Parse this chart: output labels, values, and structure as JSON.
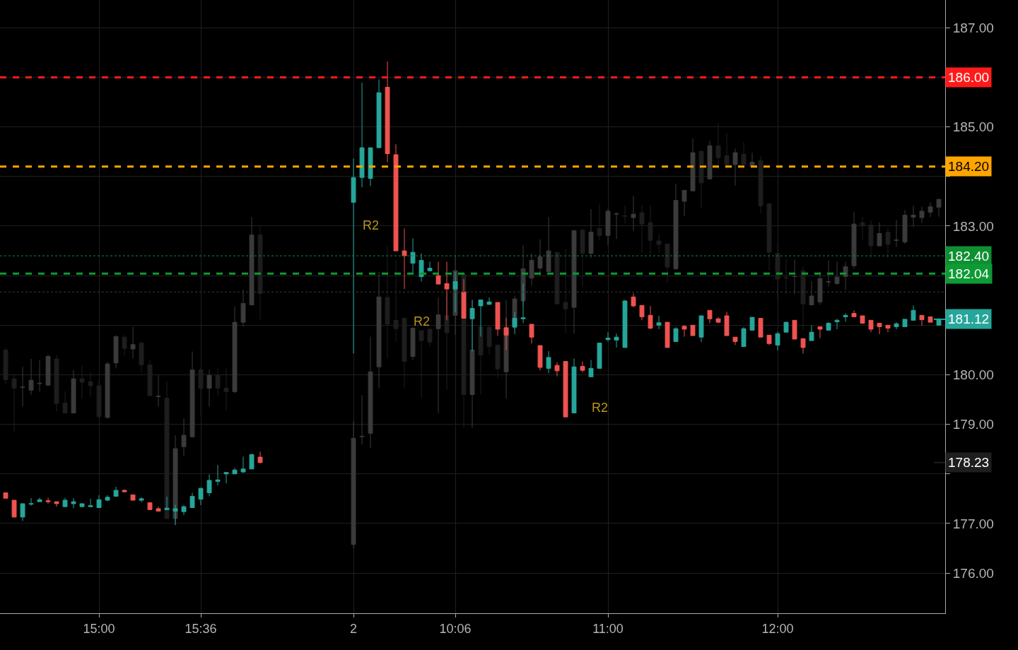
{
  "chart_data": {
    "type": "candlestick",
    "categories": [
      null,
      null,
      null,
      null,
      null,
      null,
      null,
      null,
      null,
      null,
      null,
      "15:00",
      null,
      null,
      null,
      null,
      null,
      null,
      null,
      null,
      null,
      null,
      null,
      "15:36",
      null,
      null,
      null,
      null,
      null,
      null,
      null,
      null,
      null,
      null,
      null,
      null,
      null,
      null,
      null,
      null,
      null,
      "2",
      null,
      null,
      null,
      null,
      null,
      null,
      null,
      null,
      null,
      null,
      null,
      "10:06",
      null,
      null,
      null,
      null,
      null,
      null,
      null,
      null,
      null,
      null,
      null,
      null,
      null,
      null,
      null,
      null,
      null,
      "11:00",
      null,
      null,
      null,
      null,
      null,
      null,
      null,
      null,
      null,
      null,
      null,
      null,
      null,
      null,
      null,
      null,
      null,
      null,
      null,
      "12:00",
      null,
      null,
      null,
      null,
      null,
      null,
      null,
      null,
      null,
      null,
      null,
      null,
      null,
      null,
      null,
      null,
      null,
      null,
      null
    ],
    "ylim": [
      175.19,
      187.56
    ],
    "yticks": [
      {
        "value": 176,
        "label": "176.00"
      },
      {
        "value": 177,
        "label": "177.00"
      },
      {
        "value": 178,
        "label": null
      },
      {
        "value": 179,
        "label": "179.00"
      },
      {
        "value": 180,
        "label": "180.00"
      },
      {
        "value": 181,
        "label": null
      },
      {
        "value": 182,
        "label": null
      },
      {
        "value": 183,
        "label": "183.00"
      },
      {
        "value": 184,
        "label": null
      },
      {
        "value": 185,
        "label": "185.00"
      },
      {
        "value": 186,
        "label": null
      },
      {
        "value": 187,
        "label": "187.00"
      }
    ],
    "grid": true,
    "series": [
      {
        "colors": [
          "#1e1e1e",
          "#1e1e1e",
          "#3b3b3b",
          "#3b3b3b",
          "#3b3b3b",
          "#3b3b3b",
          "#1e1e1e",
          "#1e1e1e",
          "#3b3b3b",
          "#1e1e1e",
          "#1e1e1e",
          "#1e1e1e",
          "#3b3b3b",
          "#3b3b3b",
          "#1e1e1e",
          "#3b3b3b",
          "#1e1e1e",
          "#1e1e1e",
          "#3b3b3b",
          "#1e1e1e",
          "#3b3b3b",
          "#3b3b3b",
          "#3b3b3b",
          "#1e1e1e",
          "#3b3b3b",
          "#1e1e1e",
          "#1e1e1e",
          "#3b3b3b",
          "#3b3b3b",
          "#3b3b3b",
          "#1e1e1e",
          null,
          null,
          null,
          null,
          null,
          null,
          null,
          null,
          null,
          null,
          "#3b3b3b",
          "#3b3b3b",
          "#3b3b3b",
          "#3b3b3b",
          "#1e1e1e",
          "#1e1e1e",
          "#1e1e1e",
          "#3b3b3b",
          "#1e1e1e",
          "#1e1e1e",
          "#3b3b3b",
          "#1e1e1e",
          "#3b3b3b",
          "#1e1e1e",
          "#3b3b3b",
          "#1e1e1e",
          "#1e1e1e",
          "#1e1e1e",
          "#3b3b3b",
          "#3b3b3b",
          "#3b3b3b",
          "#3b3b3b",
          "#3b3b3b",
          "#3b3b3b",
          "#1e1e1e",
          "#1e1e1e",
          "#3b3b3b",
          "#1e1e1e",
          "#3b3b3b",
          "#1e1e1e",
          "#3b3b3b",
          "#3b3b3b",
          "#1e1e1e",
          "#3b3b3b",
          "#1e1e1e",
          "#1e1e1e",
          "#1e1e1e",
          "#1e1e1e",
          "#3b3b3b",
          "#3b3b3b",
          "#3b3b3b",
          "#1e1e1e",
          "#3b3b3b",
          "#1e1e1e",
          "#1e1e1e",
          "#3b3b3b",
          "#1e1e1e",
          "#3b3b3b",
          "#1e1e1e",
          "#1e1e1e",
          "#1e1e1e",
          "#1e1e1e",
          "#3b3b3b",
          "#1e1e1e",
          "#3b3b3b",
          "#3b3b3b",
          "#3b3b3b",
          "#3b3b3b",
          "#3b3b3b",
          "#3b3b3b",
          "#1e1e1e",
          "#1e1e1e",
          "#3b3b3b",
          "#1e1e1e",
          "#3b3b3b",
          "#3b3b3b",
          "#3b3b3b",
          "#3b3b3b",
          "#3b3b3b",
          "#3b3b3b"
        ],
        "ohlc": [
          [
            180.5,
            180.55,
            179.82,
            179.9
          ],
          [
            179.92,
            180.02,
            178.85,
            179.73
          ],
          [
            179.75,
            180.16,
            179.36,
            179.75
          ],
          [
            179.69,
            180.32,
            179.6,
            179.89
          ],
          [
            179.82,
            180.29,
            179.66,
            179.83
          ],
          [
            179.79,
            180.41,
            179.79,
            180.37
          ],
          [
            180.32,
            180.4,
            179.25,
            179.42
          ],
          [
            179.43,
            179.67,
            179.22,
            179.23
          ],
          [
            179.23,
            180.1,
            179.22,
            179.92
          ],
          [
            179.92,
            180.19,
            179.52,
            179.85
          ],
          [
            179.86,
            180.06,
            179.56,
            179.78
          ],
          [
            179.78,
            179.88,
            179.11,
            179.16
          ],
          [
            179.14,
            180.26,
            179.11,
            180.22
          ],
          [
            180.24,
            180.8,
            180.13,
            180.77
          ],
          [
            180.76,
            180.8,
            180.39,
            180.53
          ],
          [
            180.52,
            180.97,
            180.33,
            180.61
          ],
          [
            180.64,
            180.67,
            180.03,
            180.2
          ],
          [
            180.2,
            180.29,
            179.58,
            179.58
          ],
          [
            179.56,
            179.99,
            179.36,
            179.57
          ],
          [
            179.53,
            179.87,
            177.1,
            177.1
          ],
          [
            177.1,
            178.78,
            176.97,
            178.51
          ],
          [
            178.55,
            179.12,
            178.37,
            178.78
          ],
          [
            178.75,
            180.47,
            178.73,
            180.1
          ],
          [
            180.1,
            180.13,
            179.15,
            179.73
          ],
          [
            179.73,
            180.1,
            179.36,
            179.99
          ],
          [
            179.99,
            180.13,
            179.58,
            179.73
          ],
          [
            179.73,
            180.13,
            179.28,
            179.66
          ],
          [
            179.66,
            181.37,
            179.63,
            181.06
          ],
          [
            181.06,
            181.72,
            180.97,
            181.44
          ],
          [
            181.41,
            183.18,
            181.41,
            182.82
          ],
          [
            182.82,
            183.02,
            181.11,
            181.64
          ],
          null,
          null,
          null,
          null,
          null,
          null,
          null,
          null,
          null,
          null,
          [
            176.58,
            179.07,
            176.5,
            178.72
          ],
          [
            178.75,
            179.59,
            178.59,
            178.76
          ],
          [
            178.82,
            180.77,
            178.52,
            180.06
          ],
          [
            180.16,
            182.08,
            179.73,
            181.57
          ],
          [
            181.56,
            182.6,
            180.34,
            181.02
          ],
          [
            181.1,
            182.31,
            180.66,
            180.93
          ],
          [
            181.14,
            181.14,
            179.73,
            180.27
          ],
          [
            180.37,
            180.96,
            180.3,
            180.94
          ],
          [
            180.89,
            180.89,
            179.53,
            180.69
          ],
          [
            180.92,
            180.92,
            180.57,
            180.66
          ],
          [
            180.93,
            181.56,
            179.23,
            181.21
          ],
          [
            181.2,
            181.7,
            179.7,
            180.85
          ],
          [
            181.2,
            182.4,
            180.8,
            182.1
          ],
          [
            182.03,
            182.03,
            178.93,
            179.6
          ],
          [
            179.6,
            181.51,
            178.93,
            180.5
          ],
          [
            180.97,
            180.97,
            179.6,
            180.4
          ],
          [
            180.96,
            181.0,
            180.4,
            180.57
          ],
          [
            180.6,
            180.6,
            179.93,
            180.12
          ],
          [
            180.06,
            181.51,
            179.52,
            180.94
          ],
          [
            180.97,
            181.6,
            180.9,
            181.53
          ],
          [
            181.49,
            182.61,
            181.4,
            182.14
          ],
          [
            181.95,
            182.45,
            181.8,
            182.31
          ],
          [
            182.15,
            182.73,
            182.0,
            182.38
          ],
          [
            182.08,
            183.18,
            182.08,
            182.5
          ],
          [
            182.47,
            182.47,
            181.43,
            181.43
          ],
          [
            181.46,
            182.54,
            180.83,
            181.33
          ],
          [
            181.36,
            182.91,
            180.83,
            182.91
          ],
          [
            182.92,
            182.95,
            181.77,
            182.45
          ],
          [
            182.45,
            183.34,
            182.35,
            182.88
          ],
          [
            182.95,
            183.45,
            182.71,
            182.81
          ],
          [
            182.81,
            183.35,
            182.61,
            183.3
          ],
          [
            183.24,
            183.28,
            182.74,
            183.25
          ],
          [
            183.21,
            183.42,
            183.05,
            183.2
          ],
          [
            183.17,
            183.61,
            182.9,
            183.24
          ],
          [
            183.27,
            183.42,
            182.47,
            183.04
          ],
          [
            183.07,
            183.42,
            182.41,
            182.71
          ],
          [
            182.7,
            182.85,
            182.47,
            182.63
          ],
          [
            182.64,
            182.64,
            181.86,
            182.17
          ],
          [
            182.14,
            183.85,
            182.11,
            183.52
          ],
          [
            183.5,
            183.72,
            183.2,
            183.72
          ],
          [
            183.71,
            184.77,
            183.71,
            184.48
          ],
          [
            184.51,
            184.51,
            183.36,
            183.87
          ],
          [
            183.95,
            184.72,
            183.95,
            184.62
          ],
          [
            184.62,
            185.08,
            184.14,
            184.38
          ],
          [
            184.42,
            184.88,
            184.14,
            184.24
          ],
          [
            184.24,
            184.56,
            183.82,
            184.48
          ],
          [
            184.45,
            184.7,
            184.14,
            184.24
          ],
          [
            184.21,
            184.48,
            184.18,
            184.29
          ],
          [
            184.32,
            184.41,
            183.25,
            183.41
          ],
          [
            183.45,
            183.45,
            182.1,
            182.47
          ],
          [
            182.45,
            182.61,
            181.49,
            181.93
          ],
          [
            181.96,
            182.34,
            181.63,
            181.95
          ],
          [
            181.98,
            182.32,
            181.63,
            181.98
          ],
          [
            182.1,
            182.18,
            180.89,
            181.43
          ],
          [
            181.41,
            181.89,
            181.41,
            181.59
          ],
          [
            181.47,
            182.08,
            181.41,
            181.94
          ],
          [
            181.87,
            182.31,
            181.78,
            181.88
          ],
          [
            181.84,
            182.28,
            181.81,
            181.97
          ],
          [
            181.98,
            182.28,
            181.71,
            182.18
          ],
          [
            182.2,
            183.28,
            182.14,
            183.04
          ],
          [
            183.07,
            183.18,
            182.73,
            183.0
          ],
          [
            183.02,
            183.12,
            182.35,
            182.6
          ],
          [
            182.6,
            183.07,
            182.6,
            182.85
          ],
          [
            182.88,
            182.97,
            182.35,
            182.63
          ],
          [
            182.71,
            183.12,
            182.58,
            182.72
          ],
          [
            182.68,
            183.32,
            182.64,
            183.22
          ],
          [
            183.18,
            183.41,
            182.98,
            183.22
          ],
          [
            183.17,
            183.39,
            183.06,
            183.3
          ],
          [
            183.28,
            183.48,
            183.18,
            183.39
          ],
          [
            183.38,
            183.54,
            183.19,
            183.54
          ]
        ]
      },
      {
        "colors": [
          "#ef5350",
          "#ef5350",
          "#26a69a",
          "#26a69a",
          "#26a69a",
          "#ef5350",
          "#ef5350",
          "#26a69a",
          "#26a69a",
          "#26a69a",
          "#26a69a",
          "#26a69a",
          "#26a69a",
          "#26a69a",
          "#ef5350",
          "#ef5350",
          "#26a69a",
          "#ef5350",
          "#ef5350",
          "#26a69a",
          "#26a69a",
          "#26a69a",
          "#26a69a",
          "#26a69a",
          "#26a69a",
          "#26a69a",
          "#26a69a",
          "#26a69a",
          "#26a69a",
          "#26a69a",
          "#ef5350",
          null,
          null,
          null,
          null,
          null,
          null,
          null,
          null,
          null,
          null,
          "#26a69a",
          "#26a69a",
          "#26a69a",
          "#26a69a",
          "#ef5350",
          "#ef5350",
          "#ef5350",
          "#26a69a",
          "#26a69a",
          "#26a69a",
          "#ef5350",
          "#ef5350",
          "#26a69a",
          "#ef5350",
          "#26a69a",
          "#26a69a",
          "#26a69a",
          "#ef5350",
          "#ef5350",
          "#26a69a",
          "#26a69a",
          "#ef5350",
          "#ef5350",
          "#26a69a",
          "#ef5350",
          "#ef5350",
          "#26a69a",
          "#ef5350",
          "#26a69a",
          "#26a69a",
          "#26a69a",
          "#26a69a",
          "#26a69a",
          "#ef5350",
          "#ef5350",
          "#ef5350",
          "#26a69a",
          "#ef5350",
          "#26a69a",
          "#ef5350",
          "#ef5350",
          "#26a69a",
          "#ef5350",
          "#ef5350",
          "#ef5350",
          "#ef5350",
          "#26a69a",
          "#26a69a",
          "#ef5350",
          "#ef5350",
          "#26a69a",
          "#26a69a",
          "#ef5350",
          "#ef5350",
          "#26a69a",
          "#ef5350",
          "#26a69a",
          "#26a69a",
          "#26a69a",
          "#ef5350",
          "#ef5350",
          "#ef5350",
          "#ef5350",
          "#ef5350",
          "#26a69a",
          "#26a69a",
          "#26a69a",
          "#ef5350",
          "#ef5350",
          "#26a69a"
        ],
        "ohlc": [
          [
            177.62,
            177.62,
            177.51,
            177.51
          ],
          [
            177.47,
            177.47,
            177.13,
            177.13
          ],
          [
            177.13,
            177.4,
            177.05,
            177.4
          ],
          [
            177.39,
            177.51,
            177.36,
            177.4
          ],
          [
            177.44,
            177.52,
            177.44,
            177.48
          ],
          [
            177.46,
            177.52,
            177.4,
            177.44
          ],
          [
            177.44,
            177.44,
            177.34,
            177.4
          ],
          [
            177.34,
            177.52,
            177.34,
            177.47
          ],
          [
            177.4,
            177.51,
            177.31,
            177.44
          ],
          [
            177.34,
            177.4,
            177.34,
            177.4
          ],
          [
            177.34,
            177.5,
            177.34,
            177.36
          ],
          [
            177.32,
            177.57,
            177.32,
            177.48
          ],
          [
            177.47,
            177.57,
            177.45,
            177.53
          ],
          [
            177.55,
            177.74,
            177.55,
            177.67
          ],
          [
            177.67,
            177.69,
            177.63,
            177.64
          ],
          [
            177.58,
            177.58,
            177.47,
            177.47
          ],
          [
            177.47,
            177.53,
            177.43,
            177.5
          ],
          [
            177.42,
            177.42,
            177.28,
            177.28
          ],
          [
            177.3,
            177.34,
            177.25,
            177.25
          ],
          [
            177.28,
            177.54,
            177.28,
            177.31
          ],
          [
            177.25,
            177.38,
            176.97,
            177.3
          ],
          [
            177.24,
            177.37,
            177.17,
            177.34
          ],
          [
            177.32,
            177.62,
            177.32,
            177.55
          ],
          [
            177.49,
            177.72,
            177.37,
            177.71
          ],
          [
            177.62,
            177.99,
            177.55,
            177.87
          ],
          [
            177.85,
            178.18,
            177.77,
            177.88
          ],
          [
            178.0,
            178.04,
            177.81,
            178.03
          ],
          [
            178.0,
            178.12,
            178.0,
            178.08
          ],
          [
            178.04,
            178.35,
            178.02,
            178.1
          ],
          [
            178.1,
            178.41,
            178.1,
            178.39
          ],
          [
            178.34,
            178.45,
            178.21,
            178.23
          ],
          null,
          null,
          null,
          null,
          null,
          null,
          null,
          null,
          null,
          null,
          [
            183.48,
            184.36,
            180.43,
            183.98
          ],
          [
            183.98,
            185.89,
            183.78,
            184.58
          ],
          [
            183.96,
            184.58,
            183.81,
            184.58
          ],
          [
            184.58,
            185.96,
            184.58,
            185.69
          ],
          [
            185.8,
            186.32,
            184.29,
            184.46
          ],
          [
            184.44,
            184.65,
            182.5,
            182.5
          ],
          [
            182.5,
            182.95,
            181.73,
            182.4
          ],
          [
            182.25,
            182.75,
            182.03,
            182.47
          ],
          [
            181.98,
            182.45,
            181.88,
            182.31
          ],
          [
            182.1,
            182.28,
            182.08,
            182.15
          ],
          [
            182.0,
            182.28,
            181.83,
            181.83
          ],
          [
            181.84,
            182.28,
            181.1,
            181.73
          ],
          [
            181.73,
            182.08,
            181.26,
            181.88
          ],
          [
            181.67,
            181.93,
            181.14,
            181.14
          ],
          [
            181.13,
            181.51,
            180.47,
            181.34
          ],
          [
            181.39,
            181.51,
            180.77,
            181.51
          ],
          [
            181.42,
            181.56,
            181.41,
            181.47
          ],
          [
            181.46,
            181.46,
            180.79,
            180.92
          ],
          [
            180.95,
            181.15,
            180.5,
            180.8
          ],
          [
            180.96,
            181.27,
            180.82,
            181.14
          ],
          [
            181.13,
            181.84,
            181.04,
            181.15
          ],
          [
            181.02,
            181.02,
            180.63,
            180.76
          ],
          [
            180.59,
            180.59,
            180.09,
            180.15
          ],
          [
            180.13,
            180.48,
            180.03,
            180.35
          ],
          [
            180.19,
            180.25,
            179.97,
            180.08
          ],
          [
            180.27,
            180.27,
            179.15,
            179.15
          ],
          [
            179.23,
            180.33,
            179.23,
            180.16
          ],
          [
            180.17,
            180.27,
            180.05,
            180.09
          ],
          [
            179.96,
            180.3,
            179.96,
            180.13
          ],
          [
            180.13,
            180.64,
            180.13,
            180.64
          ],
          [
            180.71,
            180.86,
            180.67,
            180.74
          ],
          [
            180.7,
            180.83,
            180.55,
            180.76
          ],
          [
            180.55,
            181.51,
            180.55,
            181.49
          ],
          [
            181.57,
            181.64,
            181.36,
            181.39
          ],
          [
            181.4,
            181.4,
            181.1,
            181.17
          ],
          [
            181.2,
            181.39,
            180.92,
            180.94
          ],
          [
            181.0,
            181.19,
            180.92,
            181.05
          ],
          [
            181.06,
            181.06,
            180.55,
            180.55
          ],
          [
            180.67,
            180.96,
            180.67,
            180.93
          ],
          [
            180.98,
            181.0,
            180.77,
            180.92
          ],
          [
            181.0,
            181.0,
            180.79,
            180.79
          ],
          [
            180.76,
            181.19,
            180.66,
            181.19
          ],
          [
            181.3,
            181.3,
            181.04,
            181.13
          ],
          [
            181.13,
            181.16,
            181.04,
            181.06
          ],
          [
            181.19,
            181.27,
            180.79,
            180.79
          ],
          [
            180.76,
            180.76,
            180.6,
            180.67
          ],
          [
            180.57,
            180.96,
            180.57,
            180.93
          ],
          [
            180.9,
            181.16,
            180.9,
            181.16
          ],
          [
            181.14,
            181.14,
            180.76,
            180.76
          ],
          [
            180.8,
            180.8,
            180.6,
            180.63
          ],
          [
            180.6,
            180.87,
            180.49,
            180.83
          ],
          [
            180.86,
            181.06,
            180.86,
            181.06
          ],
          [
            181.1,
            181.1,
            180.72,
            180.72
          ],
          [
            180.73,
            180.73,
            180.43,
            180.55
          ],
          [
            180.69,
            181.0,
            180.69,
            180.86
          ],
          [
            180.97,
            180.97,
            180.74,
            180.92
          ],
          [
            180.9,
            181.06,
            180.9,
            181.04
          ],
          [
            181.07,
            181.13,
            180.92,
            181.1
          ],
          [
            181.17,
            181.24,
            181.07,
            181.2
          ],
          [
            181.24,
            181.3,
            181.17,
            181.17
          ],
          [
            181.19,
            181.19,
            181.03,
            181.04
          ],
          [
            181.1,
            181.1,
            180.86,
            180.92
          ],
          [
            181.04,
            181.04,
            180.82,
            180.97
          ],
          [
            181.0,
            181.0,
            180.86,
            180.94
          ],
          [
            180.97,
            181.06,
            180.92,
            181.03
          ],
          [
            180.97,
            181.12,
            180.97,
            181.12
          ],
          [
            181.1,
            181.4,
            181.1,
            181.3
          ],
          [
            181.2,
            181.2,
            180.99,
            181.11
          ],
          [
            181.17,
            181.17,
            181.06,
            181.06
          ],
          [
            181.0,
            181.14,
            180.99,
            181.12
          ]
        ]
      }
    ],
    "ref_lines": [
      {
        "axis": "y",
        "value": 186.0,
        "label": "186.00",
        "color": "#ff1a1a",
        "line_style": "dashed"
      },
      {
        "axis": "y",
        "value": 184.2,
        "label": "184.20",
        "color": "#ffa500",
        "line_style": "dashed"
      },
      {
        "axis": "y",
        "value": 182.4,
        "label": "182.40",
        "color": "#0d8f32",
        "line_style": "dotted"
      },
      {
        "axis": "y",
        "value": 182.04,
        "label": "182.04",
        "color": "#0e9a35",
        "line_style": "dashed"
      },
      {
        "axis": "y",
        "value": 181.67,
        "label": null,
        "color": "#3a3a3a",
        "line_style": "dotted"
      },
      {
        "axis": "y",
        "value": 181.12,
        "label": "181.12",
        "color": "#26a69a",
        "line_style": "solid"
      },
      {
        "axis": "y",
        "value": 178.23,
        "label": "178.23",
        "color": "#1e1e1e",
        "line_style": "solid"
      }
    ],
    "annotations": [
      {
        "text": "R2",
        "y": 183.81
      },
      {
        "text": "R2",
        "y": 181.88
      },
      {
        "text": "R2",
        "y": 180.13
      }
    ]
  }
}
